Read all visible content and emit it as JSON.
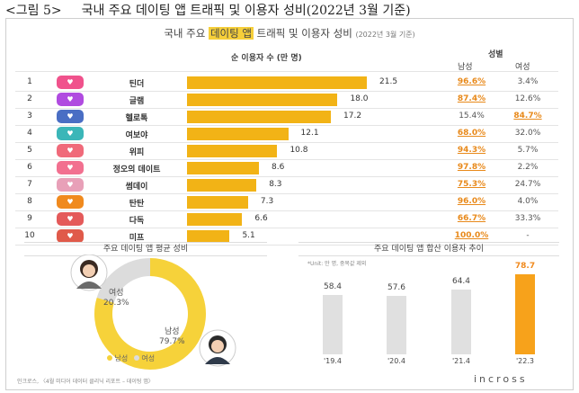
{
  "figure": {
    "label": "<그림 5>",
    "title": "국내 주요 데이팅 앱 트래픽 및 이용자 성비(2022년 3월 기준)"
  },
  "card": {
    "title_pre": "국내 주요",
    "title_highlight": "데이팅 앱",
    "title_post": "트래픽 및 이용자 성비",
    "title_year": "(2022년 3월 기준)"
  },
  "table": {
    "users_header": "순 이용자 수 (만 명)",
    "gender_header": "성별",
    "male_header": "남성",
    "female_header": "여성"
  },
  "icon_colors": [
    "#f0528c",
    "#b04be0",
    "#4a6ec4",
    "#3bb6b8",
    "#f06a7a",
    "#f27090",
    "#e8a0b8",
    "#f08a1e",
    "#e45a5a",
    "#e05a4a"
  ],
  "chart_data": [
    {
      "type": "bar",
      "title": "순 이용자 수 (만 명)",
      "categories": [
        "틴더",
        "글램",
        "헬로톡",
        "여보야",
        "위피",
        "정오의 데이트",
        "썸데이",
        "탄탄",
        "다독",
        "미프"
      ],
      "ranks": [
        "1",
        "2",
        "3",
        "4",
        "5",
        "6",
        "7",
        "8",
        "9",
        "10"
      ],
      "values": [
        21.5,
        18.0,
        17.2,
        12.1,
        10.8,
        8.6,
        8.3,
        7.3,
        6.6,
        5.1
      ],
      "value_labels": [
        "21.5",
        "18.0",
        "17.2",
        "12.1",
        "10.8",
        "8.6",
        "8.3",
        "7.3",
        "6.6",
        "5.1"
      ],
      "male_pct": [
        "96.6%",
        "87.4%",
        "15.4%",
        "68.0%",
        "94.3%",
        "97.8%",
        "75.3%",
        "96.0%",
        "66.7%",
        "100.0%"
      ],
      "female_pct": [
        "3.4%",
        "12.6%",
        "84.7%",
        "32.0%",
        "5.7%",
        "2.2%",
        "24.7%",
        "4.0%",
        "33.3%",
        "-"
      ],
      "majority": [
        "m",
        "m",
        "f",
        "m",
        "m",
        "m",
        "m",
        "m",
        "m",
        "m"
      ],
      "xlim": [
        0,
        25
      ]
    },
    {
      "type": "pie",
      "title": "주요 데이팅 앱 평균 성비",
      "labels": [
        "남성",
        "여성"
      ],
      "values": [
        79.7,
        20.3
      ],
      "value_labels": [
        "79.7%",
        "20.3%"
      ],
      "colors": [
        "#f6d23a",
        "#dcdcdc"
      ],
      "legend": [
        "남성",
        "여성"
      ]
    },
    {
      "type": "bar",
      "title": "주요 데이팅 앱 합산 이용자 추이",
      "unit_note": "*Unit: 만 명, 중복값 제외",
      "categories": [
        "'19.4",
        "'20.4",
        "'21.4",
        "'22.3"
      ],
      "values": [
        58.4,
        57.6,
        64.4,
        78.7
      ],
      "value_labels": [
        "58.4",
        "57.6",
        "64.4",
        "78.7"
      ],
      "colors": [
        "#e0e0e0",
        "#e0e0e0",
        "#e0e0e0",
        "#f7a21b"
      ],
      "ylim": [
        0,
        80
      ]
    }
  ],
  "footer": {
    "source": "인크로스, 〈4월 미디어 데이터 클리닉 리포트 – 데이팅 앱〉",
    "brand": "incross"
  }
}
